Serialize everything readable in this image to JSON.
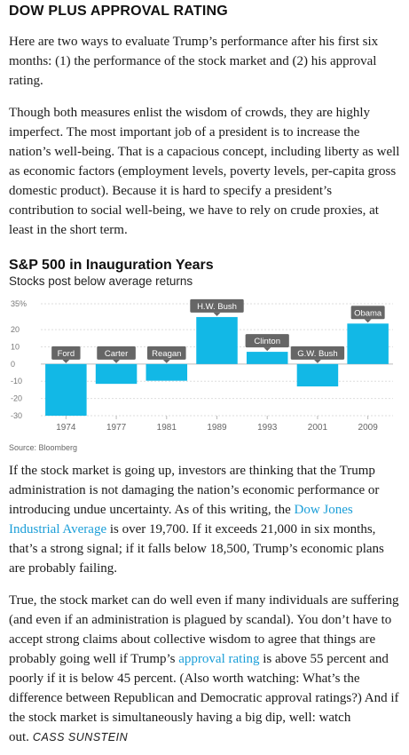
{
  "header": {
    "title": "DOW PLUS APPROVAL RATING"
  },
  "article": {
    "p1": "Here are two ways to evaluate Trump’s performance after his first six months: (1) the performance of the stock market and (2) his approval rating.",
    "p2": "Though both measures enlist the wisdom of crowds, they are highly imperfect. The most important job of a president is to increase the nation’s well-being. That is a capacious concept, including liberty as well as economic factors (employment levels, poverty levels, per-capita gross domestic product). Because it is hard to specify a president’s contribution to social well-being, we have to rely on crude proxies, at least in the short term.",
    "p3_a": "If the stock market is going up, investors are thinking that the Trump administration is not damaging the nation’s economic performance or introducing undue uncertainty. As of this writing, the ",
    "p3_link": "Dow Jones Industrial Average",
    "p3_b": " is over 19,700. If it exceeds 21,000 in six months, that’s a strong signal; if it falls below 18,500, Trump’s economic plans are probably failing.",
    "p4_a": "True, the stock market can do well even if many individuals are suffering (and even if an administration is plagued by scandal). You don’t have to accept strong claims about collective wisdom to agree that things are probably going well if Trump’s ",
    "p4_link": "approval rating",
    "p4_b": " is above 55 percent and poorly if it is below 45 percent. (Also worth watching: What’s the difference between Republican and Democratic approval ratings?) And if the stock market is simultaneously having a big dip, well: watch out.",
    "byline": "CASS SUNSTEIN"
  },
  "chart_data": {
    "type": "bar",
    "title": "S&P 500 in Inauguration Years",
    "subtitle": "Stocks post below average returns",
    "categories": [
      "1974",
      "1977",
      "1981",
      "1989",
      "1993",
      "2001",
      "2009"
    ],
    "labels": [
      "Ford",
      "Carter",
      "Reagan",
      "H.W. Bush",
      "Clinton",
      "G.W. Bush",
      "Obama"
    ],
    "values": [
      -30,
      -11.5,
      -9.7,
      27.3,
      7.1,
      -13,
      23.5
    ],
    "ylim": [
      -30,
      35
    ],
    "yticks": [
      -30,
      -20,
      -10,
      0,
      10,
      20,
      35
    ],
    "ytick_labels": [
      "-30",
      "-20",
      "-10",
      "0",
      "10",
      "20",
      "35%"
    ],
    "grid": true,
    "bar_color": "#12b8e6",
    "label_color": "#666666",
    "source": "Source: Bloomberg"
  }
}
